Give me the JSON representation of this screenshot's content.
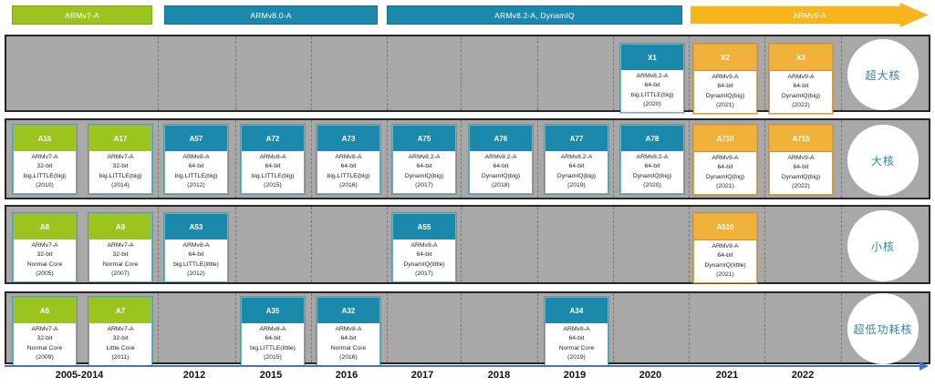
{
  "colors": {
    "era_green": "#9cc41e",
    "era_teal": "#1b89ac",
    "era_gold": "#f7b51d",
    "card_green": "#9cc41e",
    "card_teal": "#1b89ac",
    "card_orange": "#f0b23a",
    "band_gray": "#a8a8a8",
    "circle_text_teal": "#31859c",
    "axis_blue": "#4472c4"
  },
  "era_bars": [
    {
      "label": "ARMv7-A",
      "style": "green",
      "shape": "bar"
    },
    {
      "label": "ARMv8.0-A",
      "style": "teal",
      "shape": "bar"
    },
    {
      "label": "ARMv8.2-A, DynamIQ",
      "style": "teal",
      "shape": "bar"
    },
    {
      "label": "ARMv9-A",
      "style": "gold",
      "shape": "arrow"
    }
  ],
  "rows": [
    {
      "label": "超大核",
      "cards": [
        {
          "id": "X1",
          "style": "teal",
          "col": "2020",
          "lines": [
            "ARMv8.2-A",
            "64-bit",
            "big.LITTLE(big)",
            "(2020)"
          ]
        },
        {
          "id": "X2",
          "style": "orange",
          "col": "2021",
          "lines": [
            "ARMv9-A",
            "64-bit",
            "DynamIQ(big)",
            "(2021)"
          ]
        },
        {
          "id": "X3",
          "style": "orange",
          "col": "2022",
          "lines": [
            "ARMv9-A",
            "64-bit",
            "DynamIQ(big)",
            "(2022)"
          ]
        }
      ]
    },
    {
      "label": "大核",
      "cards": [
        {
          "id": "A15",
          "style": "green",
          "col": "0a",
          "lines": [
            "ARMv7-A",
            "32-bit",
            "big.LITTLE(big)",
            "(2010)"
          ]
        },
        {
          "id": "A17",
          "style": "green",
          "col": "0b",
          "lines": [
            "ARMv7-A",
            "32-bit",
            "big.LITTLE(big)",
            "(2014)"
          ]
        },
        {
          "id": "A57",
          "style": "teal",
          "col": "2012",
          "lines": [
            "ARMv8-A",
            "64-bit",
            "big.LITTLE(big)",
            "(2012)"
          ]
        },
        {
          "id": "A72",
          "style": "teal",
          "col": "2015",
          "lines": [
            "ARMv8-A",
            "64-bit",
            "big.LITTLE(big)",
            "(2015)"
          ]
        },
        {
          "id": "A73",
          "style": "teal",
          "col": "2016",
          "lines": [
            "ARMv8-A",
            "64-bit",
            "big.LITTLE(big)",
            "(2016)"
          ]
        },
        {
          "id": "A75",
          "style": "teal",
          "col": "2017",
          "lines": [
            "ARMv8.2-A",
            "64-bit",
            "DynamIQ(big)",
            "(2017)"
          ]
        },
        {
          "id": "A76",
          "style": "teal",
          "col": "2018",
          "lines": [
            "ARMv8.2-A",
            "64-bit",
            "DynamIQ(big)",
            "(2018)"
          ]
        },
        {
          "id": "A77",
          "style": "teal",
          "col": "2019",
          "lines": [
            "ARMv8.2-A",
            "64-bit",
            "DynamIQ(big)",
            "(2019)"
          ]
        },
        {
          "id": "A78",
          "style": "teal",
          "col": "2020",
          "lines": [
            "ARMv8.2-A",
            "64-bit",
            "DynamIQ(big)",
            "(2020)"
          ]
        },
        {
          "id": "A710",
          "style": "orange",
          "col": "2021",
          "lines": [
            "ARMv9-A",
            "64-bit",
            "DynamIQ(big)",
            "(2021)"
          ]
        },
        {
          "id": "A715",
          "style": "orange",
          "col": "2022",
          "lines": [
            "ARMv9-A",
            "64-bit",
            "DynamIQ(big)",
            "(2022)"
          ]
        }
      ]
    },
    {
      "label": "小核",
      "cards": [
        {
          "id": "A8",
          "style": "green",
          "col": "0a",
          "lines": [
            "ARMv7-A",
            "32-bit",
            "Normal Core",
            "(2005)"
          ]
        },
        {
          "id": "A9",
          "style": "green",
          "col": "0b",
          "lines": [
            "ARMv7-A",
            "32-bit",
            "Normal Core",
            "(2007)"
          ]
        },
        {
          "id": "A53",
          "style": "teal",
          "col": "2012",
          "lines": [
            "ARMv8-A",
            "64-bit",
            "big.LITTLE(little)",
            "(2012)"
          ]
        },
        {
          "id": "A55",
          "style": "teal",
          "col": "2017",
          "lines": [
            "ARMv8-A",
            "64-bit",
            "DynamIQ(little)",
            "(2017)"
          ]
        },
        {
          "id": "A510",
          "style": "orange",
          "col": "2021",
          "lines": [
            "ARMv9-A",
            "64-bit",
            "DynamIQ(little)",
            "(2021)"
          ]
        }
      ]
    },
    {
      "label": "超低功耗核",
      "cards": [
        {
          "id": "A5",
          "style": "green",
          "col": "0a",
          "lines": [
            "ARMv7-A",
            "32-bit",
            "Normal Core",
            "(2009)"
          ]
        },
        {
          "id": "A7",
          "style": "green",
          "col": "0b",
          "lines": [
            "ARMv7-A",
            "32-bit",
            "Little Core",
            "(2011)"
          ]
        },
        {
          "id": "A35",
          "style": "teal",
          "col": "2015",
          "lines": [
            "ARMv8-A",
            "64-bit",
            "big.LITTLE(little)",
            "(2015)"
          ]
        },
        {
          "id": "A32",
          "style": "teal",
          "col": "2016",
          "lines": [
            "ARMv8-A",
            "64-bit",
            "Normal Core",
            "(2016)"
          ]
        },
        {
          "id": "A34",
          "style": "teal",
          "col": "2019",
          "lines": [
            "ARMv8-A",
            "64-bit",
            "Normal Core",
            "(2019)"
          ]
        }
      ]
    }
  ],
  "axis_years": [
    "2005-2014",
    "2012",
    "2015",
    "2016",
    "2017",
    "2018",
    "2019",
    "2020",
    "2021",
    "2022"
  ]
}
